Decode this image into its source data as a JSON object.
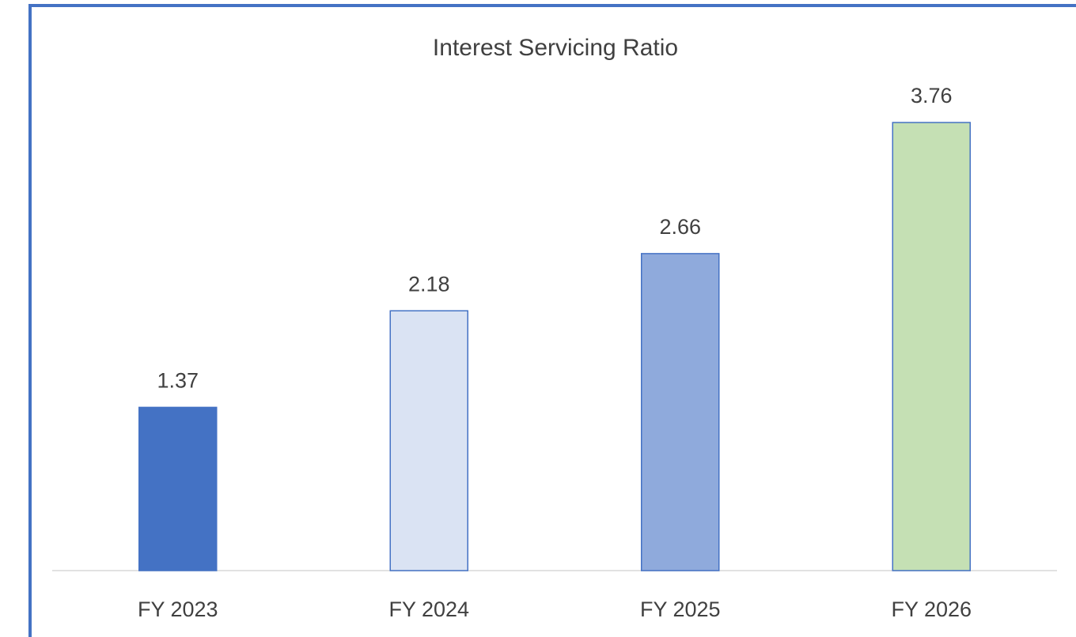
{
  "chart_data": {
    "type": "bar",
    "title": "Interest Servicing Ratio",
    "categories": [
      "FY 2023",
      "FY 2024",
      "FY 2025",
      "FY 2026"
    ],
    "values": [
      1.37,
      2.18,
      2.66,
      3.76
    ],
    "colors": [
      "#4472c4",
      "#dae3f3",
      "#8faadc",
      "#c5e0b4"
    ],
    "edge_color": "#4472c4"
  }
}
